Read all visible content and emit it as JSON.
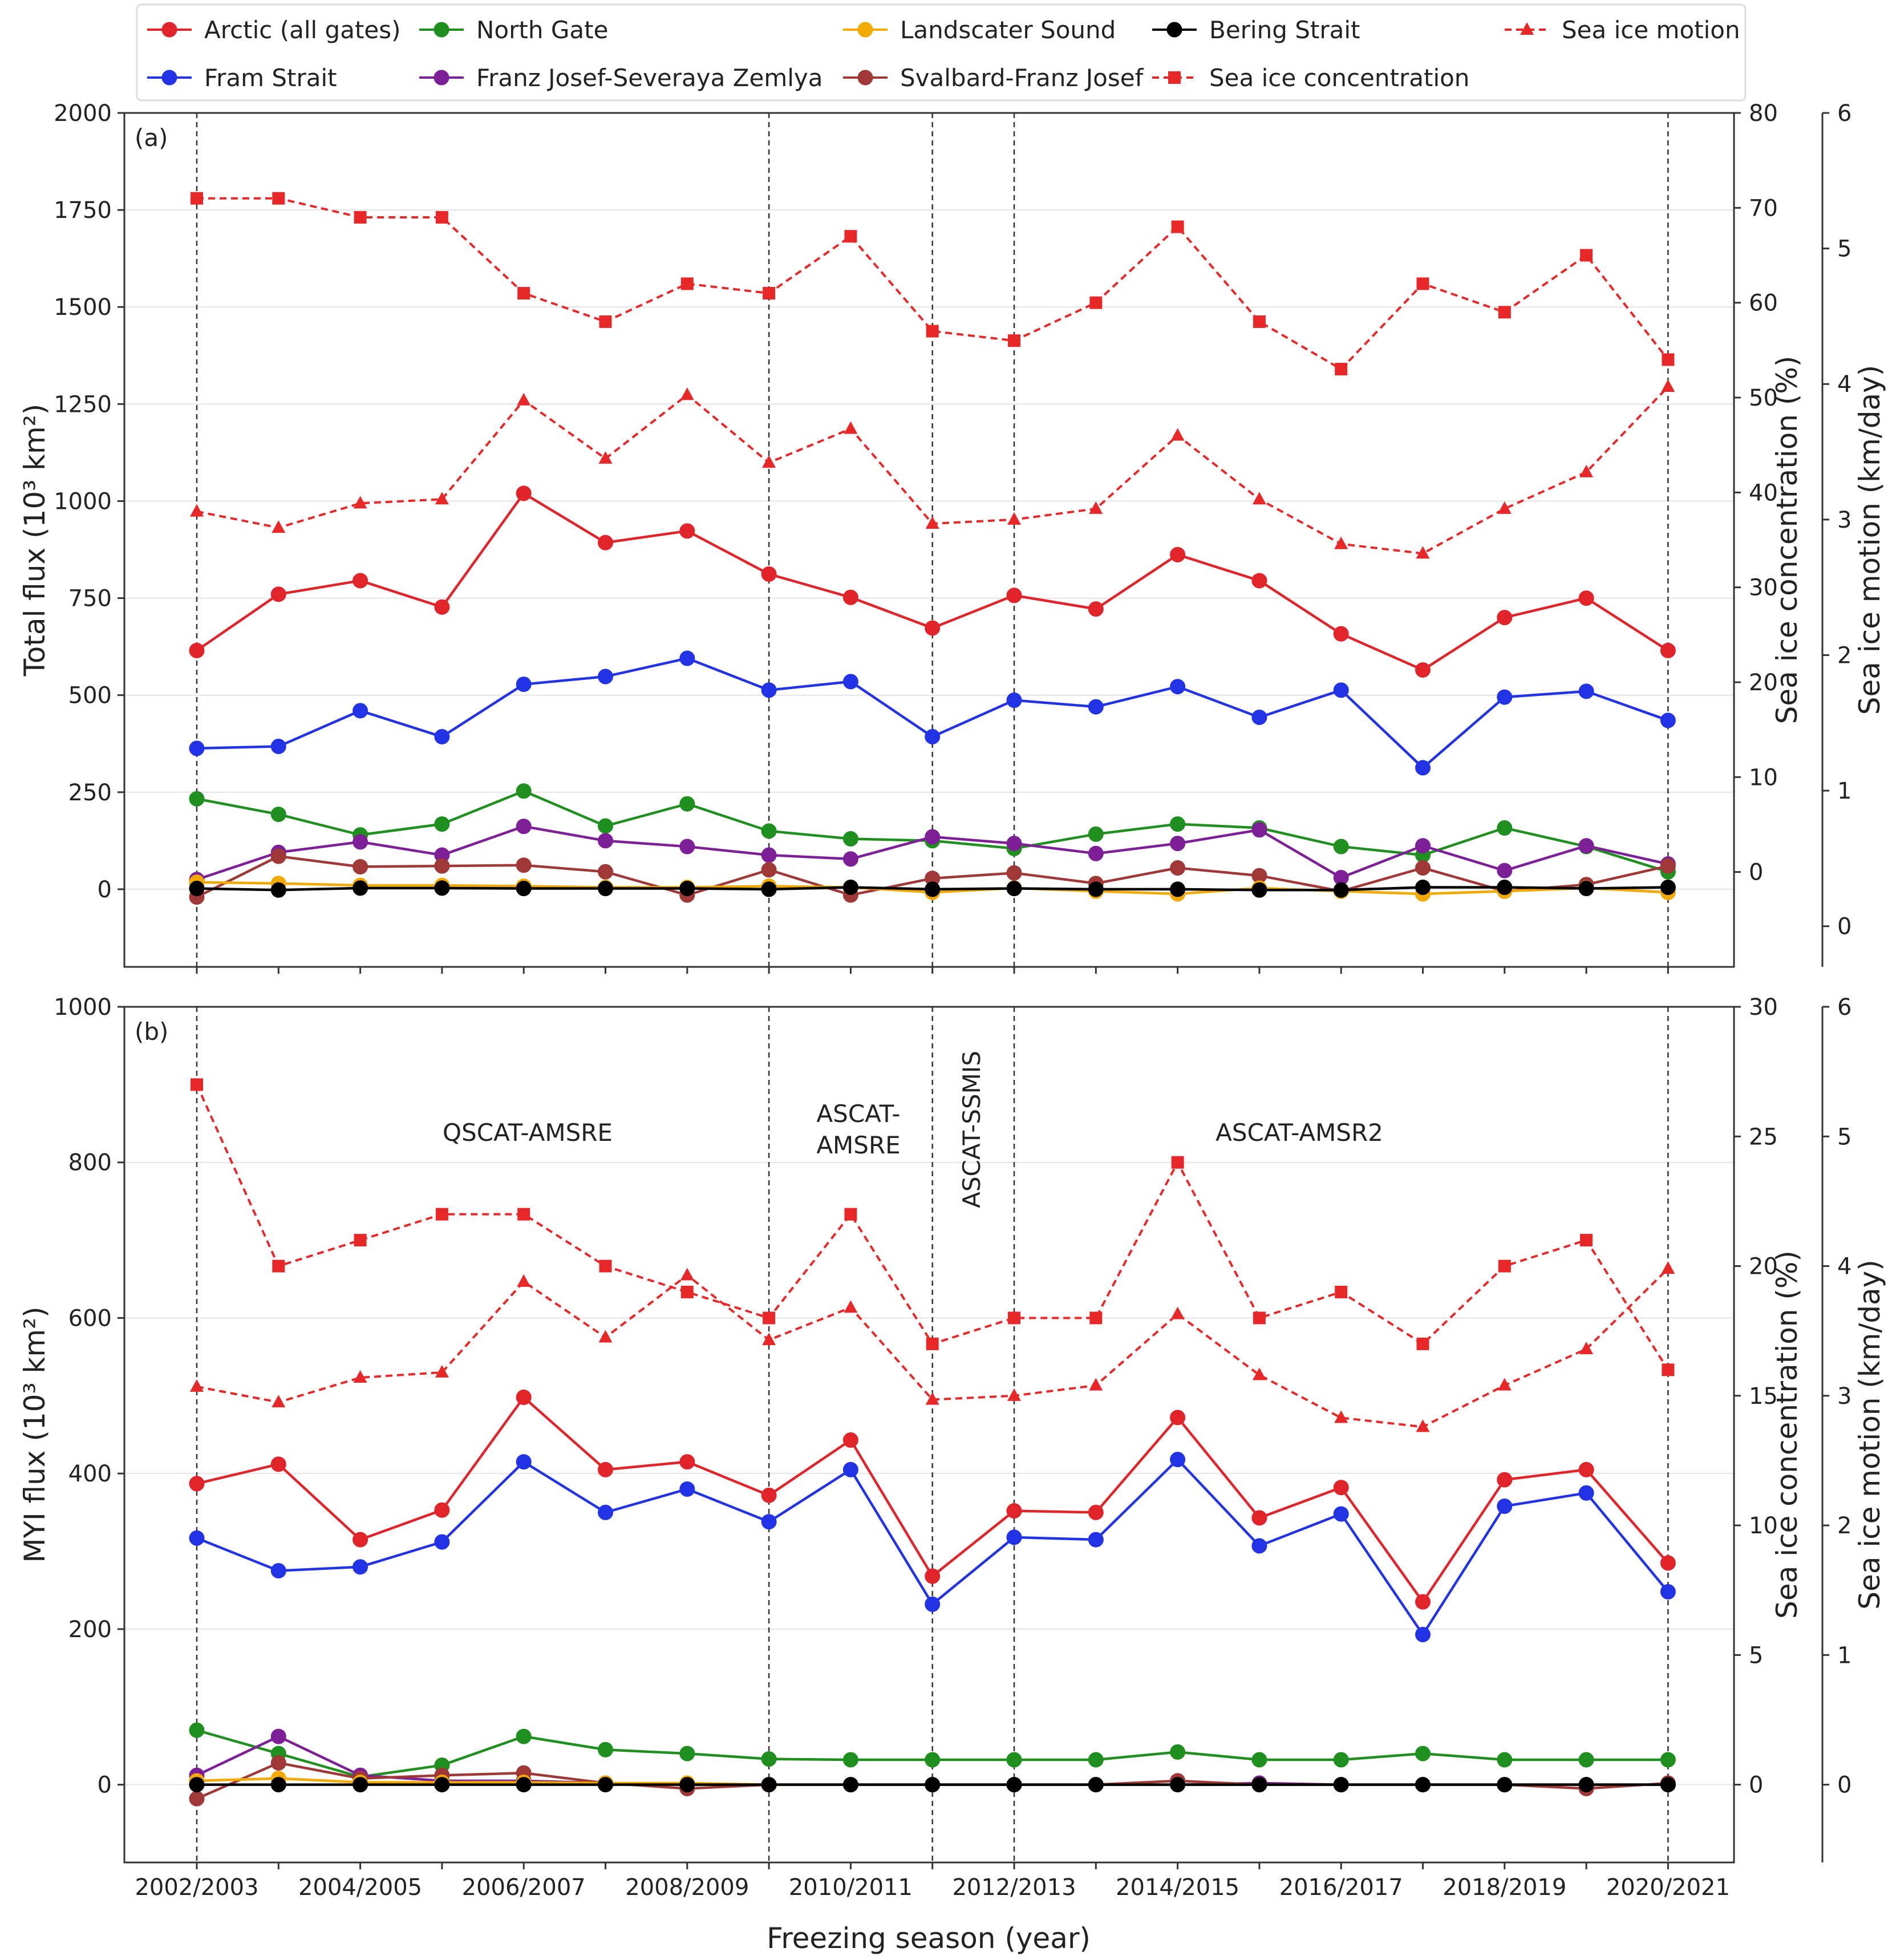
{
  "colors": {
    "arctic": "#e0242a",
    "fram": "#2233e6",
    "north": "#1f8f1f",
    "franz": "#7d1f96",
    "land": "#f2a900",
    "sval": "#a03838",
    "bering": "#000000",
    "sic": "#e82828",
    "motion": "#e82828"
  },
  "chart_data": [
    {
      "type": "line",
      "panel": "(a)",
      "xlabel": "",
      "ylabel": "Total flux (10³ km²)",
      "ylabel2": "Sea ice concentration (%)",
      "ylabel3": "Sea ice motion (km/day)",
      "ylim": [
        -200,
        2000
      ],
      "ylim2": [
        -10,
        80
      ],
      "ylim3": [
        -0.3,
        6
      ],
      "yticks": [
        0,
        250,
        500,
        750,
        1000,
        1250,
        1500,
        1750,
        2000
      ],
      "yticks2": [
        0,
        10,
        20,
        30,
        40,
        50,
        60,
        70,
        80
      ],
      "yticks3": [
        0,
        1,
        2,
        3,
        4,
        5,
        6
      ],
      "x": [
        "2002/2003",
        "2003/2004",
        "2004/2005",
        "2005/2006",
        "2006/2007",
        "2007/2008",
        "2008/2009",
        "2009/2010",
        "2010/2011",
        "2011/2012",
        "2012/2013",
        "2013/2014",
        "2014/2015",
        "2015/2016",
        "2016/2017",
        "2017/2018",
        "2018/2019",
        "2019/2020",
        "2020/2021"
      ],
      "xticklabels": [
        "2002/2003",
        "2004/2005",
        "2006/2007",
        "2008/2009",
        "2010/2011",
        "2012/2013",
        "2014/2015",
        "2016/2017",
        "2018/2019",
        "2020/2021"
      ],
      "series": [
        {
          "key": "sic",
          "name": "Sea ice concentration",
          "axis": "y2",
          "values": [
            71,
            71,
            69,
            69,
            61,
            58,
            62,
            61,
            67,
            57,
            56,
            60,
            68,
            58,
            53,
            62,
            59,
            65,
            54
          ]
        },
        {
          "key": "motion",
          "name": "Sea ice motion",
          "axis": "y3",
          "values": [
            3.06,
            2.94,
            3.12,
            3.15,
            3.88,
            3.45,
            3.92,
            3.42,
            3.67,
            2.97,
            3.0,
            3.08,
            3.62,
            3.15,
            2.82,
            2.75,
            3.08,
            3.35,
            3.98
          ]
        },
        {
          "key": "arctic",
          "name": "Arctic (all gates)",
          "axis": "y",
          "values": [
            615,
            760,
            795,
            727,
            1020,
            893,
            923,
            812,
            752,
            673,
            757,
            722,
            862,
            795,
            658,
            565,
            700,
            750,
            615
          ]
        },
        {
          "key": "fram",
          "name": "Fram Strait",
          "axis": "y",
          "values": [
            363,
            368,
            460,
            393,
            528,
            548,
            595,
            513,
            535,
            393,
            487,
            470,
            522,
            443,
            513,
            313,
            495,
            510,
            435
          ]
        },
        {
          "key": "north",
          "name": "North Gate",
          "axis": "y",
          "values": [
            233,
            193,
            140,
            168,
            253,
            163,
            220,
            150,
            130,
            125,
            105,
            142,
            168,
            158,
            110,
            88,
            158,
            110,
            45
          ]
        },
        {
          "key": "franz",
          "name": "Franz Josef-Severaya Zemlya",
          "axis": "y",
          "values": [
            25,
            95,
            122,
            88,
            162,
            125,
            110,
            88,
            78,
            135,
            118,
            92,
            118,
            153,
            30,
            112,
            48,
            112,
            65
          ]
        },
        {
          "key": "sval",
          "name": "Svalbard-Franz Josef",
          "axis": "y",
          "values": [
            -20,
            85,
            58,
            60,
            62,
            45,
            -15,
            50,
            -15,
            28,
            42,
            15,
            55,
            35,
            -5,
            55,
            -5,
            12,
            60
          ]
        },
        {
          "key": "land",
          "name": "Landscater Sound",
          "axis": "y",
          "values": [
            18,
            15,
            10,
            10,
            8,
            5,
            5,
            8,
            5,
            -8,
            3,
            -5,
            -12,
            3,
            -5,
            -12,
            -5,
            3,
            -8
          ]
        },
        {
          "key": "bering",
          "name": "Bering Strait",
          "axis": "y",
          "values": [
            2,
            -2,
            3,
            3,
            2,
            2,
            2,
            0,
            5,
            0,
            2,
            0,
            0,
            -2,
            -2,
            5,
            5,
            2,
            5
          ]
        }
      ]
    },
    {
      "type": "line",
      "panel": "(b)",
      "xlabel": "Freezing season (year)",
      "ylabel": "MYI flux (10³ km²)",
      "ylabel2": "Sea ice concentration (%)",
      "ylabel3": "Sea ice motion (km/day)",
      "ylim": [
        -100,
        1000
      ],
      "ylim2": [
        -3,
        30
      ],
      "ylim3": [
        -0.6,
        6
      ],
      "yticks": [
        0,
        200,
        400,
        600,
        800,
        1000
      ],
      "yticks2": [
        0,
        5,
        10,
        15,
        20,
        25,
        30
      ],
      "yticks3": [
        0,
        1,
        2,
        3,
        4,
        5,
        6
      ],
      "x": [
        "2002/2003",
        "2003/2004",
        "2004/2005",
        "2005/2006",
        "2006/2007",
        "2007/2008",
        "2008/2009",
        "2009/2010",
        "2010/2011",
        "2011/2012",
        "2012/2013",
        "2013/2014",
        "2014/2015",
        "2015/2016",
        "2016/2017",
        "2017/2018",
        "2018/2019",
        "2019/2020",
        "2020/2021"
      ],
      "xticklabels": [
        "2002/2003",
        "2004/2005",
        "2006/2007",
        "2008/2009",
        "2010/2011",
        "2012/2013",
        "2014/2015",
        "2016/2017",
        "2018/2019",
        "2020/2021"
      ],
      "annotations": [
        "QSCAT-AMSRE",
        "ASCAT-",
        "AMSRE",
        "ASCAT-SSMIS",
        "ASCAT-AMSR2"
      ],
      "series": [
        {
          "key": "sic",
          "name": "Sea ice concentration",
          "axis": "y2",
          "values": [
            27,
            20,
            21,
            22,
            22,
            20,
            19,
            18,
            22,
            17,
            18,
            18,
            24,
            18,
            19,
            17,
            20,
            21,
            16
          ]
        },
        {
          "key": "motion",
          "name": "Sea ice motion",
          "axis": "y3",
          "values": [
            3.07,
            2.95,
            3.14,
            3.18,
            3.88,
            3.45,
            3.93,
            3.43,
            3.68,
            2.97,
            3.0,
            3.08,
            3.63,
            3.16,
            2.83,
            2.76,
            3.08,
            3.36,
            3.98
          ]
        },
        {
          "key": "arctic",
          "name": "Arctic (all gates)",
          "axis": "y",
          "values": [
            387,
            412,
            315,
            353,
            498,
            405,
            415,
            372,
            443,
            268,
            352,
            350,
            472,
            343,
            382,
            235,
            392,
            405,
            285
          ]
        },
        {
          "key": "fram",
          "name": "Fram Strait",
          "axis": "y",
          "values": [
            317,
            275,
            280,
            312,
            415,
            350,
            380,
            338,
            405,
            232,
            318,
            315,
            418,
            307,
            348,
            193,
            358,
            375,
            248
          ]
        },
        {
          "key": "north",
          "name": "North Gate",
          "axis": "y",
          "values": [
            70,
            40,
            10,
            25,
            62,
            45,
            40,
            33,
            32,
            32,
            32,
            32,
            42,
            32,
            32,
            40,
            32,
            32,
            32
          ]
        },
        {
          "key": "franz",
          "name": "Franz Josef-Severaya Zemlya",
          "axis": "y",
          "values": [
            12,
            62,
            12,
            5,
            5,
            2,
            0,
            0,
            0,
            0,
            0,
            0,
            0,
            2,
            0,
            0,
            0,
            0,
            0
          ]
        },
        {
          "key": "sval",
          "name": "Svalbard-Franz Josef",
          "axis": "y",
          "values": [
            -18,
            28,
            8,
            12,
            15,
            2,
            -5,
            0,
            0,
            0,
            0,
            0,
            5,
            0,
            0,
            0,
            0,
            -5,
            2
          ]
        },
        {
          "key": "land",
          "name": "Landscater Sound",
          "axis": "y",
          "values": [
            5,
            8,
            3,
            3,
            3,
            2,
            2,
            0,
            0,
            0,
            0,
            0,
            0,
            0,
            0,
            0,
            0,
            0,
            0
          ]
        },
        {
          "key": "bering",
          "name": "Bering Strait",
          "axis": "y",
          "values": [
            0,
            0,
            0,
            0,
            0,
            0,
            0,
            0,
            0,
            0,
            0,
            0,
            0,
            0,
            0,
            0,
            0,
            0,
            0
          ]
        }
      ]
    }
  ],
  "legend": [
    {
      "key": "arctic",
      "label": "Arctic (all gates)",
      "marker": "circle",
      "dashed": false
    },
    {
      "key": "north",
      "label": "North Gate",
      "marker": "circle",
      "dashed": false
    },
    {
      "key": "land",
      "label": "Landscater Sound",
      "marker": "circle",
      "dashed": false
    },
    {
      "key": "bering",
      "label": "Bering Strait",
      "marker": "circle",
      "dashed": false
    },
    {
      "key": "motion",
      "label": "Sea ice motion",
      "marker": "triangle",
      "dashed": true
    },
    {
      "key": "fram",
      "label": "Fram Strait",
      "marker": "circle",
      "dashed": false
    },
    {
      "key": "franz",
      "label": "Franz Josef-Severaya Zemlya",
      "marker": "circle",
      "dashed": false
    },
    {
      "key": "sval",
      "label": "Svalbard-Franz Josef",
      "marker": "circle",
      "dashed": false
    },
    {
      "key": "sic",
      "label": "Sea ice concentration",
      "marker": "square",
      "dashed": true
    }
  ],
  "vertical_lines": [
    "2002/2003",
    "2009/2010",
    "2011/2012",
    "2012/2013",
    "2020/2021"
  ]
}
